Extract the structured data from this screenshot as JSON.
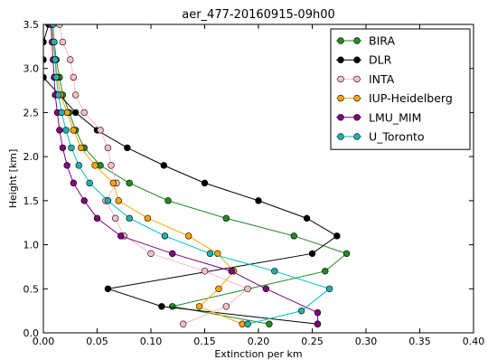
{
  "chart_data": {
    "type": "line",
    "title": "aer_477-20160915-09h00",
    "xlabel": "Extinction per km",
    "ylabel": "Height [km]",
    "xlim": [
      0.0,
      0.4
    ],
    "ylim": [
      0.0,
      3.5
    ],
    "xticks": [
      "0.00",
      "0.05",
      "0.10",
      "0.15",
      "0.20",
      "0.25",
      "0.30",
      "0.35",
      "0.40"
    ],
    "yticks": [
      "0.0",
      "0.5",
      "1.0",
      "1.5",
      "2.0",
      "2.5",
      "3.0",
      "3.5"
    ],
    "grid": false,
    "legend_position": "top-right",
    "series": [
      {
        "name": "BIRA",
        "color": "#228b22",
        "marker_fill": "#228b22",
        "points": [
          [
            0.21,
            0.1
          ],
          [
            0.12,
            0.3
          ],
          [
            0.262,
            0.7
          ],
          [
            0.282,
            0.9
          ],
          [
            0.233,
            1.1
          ],
          [
            0.17,
            1.3
          ],
          [
            0.116,
            1.5
          ],
          [
            0.08,
            1.7
          ],
          [
            0.053,
            1.9
          ],
          [
            0.038,
            2.1
          ],
          [
            0.03,
            2.3
          ],
          [
            0.024,
            2.5
          ],
          [
            0.018,
            2.7
          ],
          [
            0.015,
            2.9
          ],
          [
            0.012,
            3.1
          ],
          [
            0.01,
            3.3
          ],
          [
            0.008,
            3.5
          ]
        ]
      },
      {
        "name": "DLR",
        "color": "#000000",
        "marker_fill": "#000000",
        "points": [
          [
            0.255,
            0.1
          ],
          [
            0.11,
            0.3
          ],
          [
            0.06,
            0.5
          ],
          [
            0.25,
            0.9
          ],
          [
            0.273,
            1.1
          ],
          [
            0.245,
            1.3
          ],
          [
            0.2,
            1.5
          ],
          [
            0.15,
            1.7
          ],
          [
            0.112,
            1.9
          ],
          [
            0.078,
            2.1
          ],
          [
            0.05,
            2.3
          ],
          [
            0.03,
            2.5
          ],
          [
            0.015,
            2.7
          ],
          [
            0.0,
            2.9
          ],
          [
            0.0,
            3.1
          ],
          [
            0.0,
            3.3
          ],
          [
            0.005,
            3.5
          ]
        ]
      },
      {
        "name": "INTA",
        "color": "#ffb6c1",
        "marker_fill": "#ffc0cb",
        "points": [
          [
            0.13,
            0.1
          ],
          [
            0.17,
            0.3
          ],
          [
            0.19,
            0.5
          ],
          [
            0.15,
            0.7
          ],
          [
            0.1,
            0.9
          ],
          [
            0.075,
            1.1
          ],
          [
            0.067,
            1.3
          ],
          [
            0.058,
            1.5
          ],
          [
            0.068,
            1.7
          ],
          [
            0.063,
            1.9
          ],
          [
            0.06,
            2.1
          ],
          [
            0.053,
            2.3
          ],
          [
            0.038,
            2.5
          ],
          [
            0.03,
            2.7
          ],
          [
            0.028,
            2.9
          ],
          [
            0.025,
            3.1
          ],
          [
            0.018,
            3.3
          ],
          [
            0.015,
            3.5
          ]
        ]
      },
      {
        "name": "IUP-Heidelberg",
        "color": "#ffa500",
        "marker_fill": "#ffa500",
        "points": [
          [
            0.185,
            0.1
          ],
          [
            0.145,
            0.3
          ],
          [
            0.163,
            0.5
          ],
          [
            0.177,
            0.7
          ],
          [
            0.162,
            0.9
          ],
          [
            0.135,
            1.1
          ],
          [
            0.097,
            1.3
          ],
          [
            0.07,
            1.5
          ],
          [
            0.065,
            1.7
          ],
          [
            0.048,
            1.9
          ],
          [
            0.035,
            2.1
          ],
          [
            0.028,
            2.3
          ],
          [
            0.022,
            2.5
          ],
          [
            0.016,
            2.7
          ],
          [
            0.013,
            2.9
          ],
          [
            0.011,
            3.1
          ],
          [
            0.009,
            3.3
          ],
          [
            0.008,
            3.5
          ]
        ]
      },
      {
        "name": "LMU_MIM",
        "color": "#800080",
        "marker_fill": "#800080",
        "points": [
          [
            0.255,
            0.1
          ],
          [
            0.255,
            0.23
          ],
          [
            0.207,
            0.5
          ],
          [
            0.175,
            0.7
          ],
          [
            0.12,
            0.9
          ],
          [
            0.072,
            1.1
          ],
          [
            0.05,
            1.3
          ],
          [
            0.038,
            1.5
          ],
          [
            0.028,
            1.7
          ],
          [
            0.022,
            1.9
          ],
          [
            0.018,
            2.1
          ],
          [
            0.015,
            2.3
          ],
          [
            0.013,
            2.5
          ],
          [
            0.011,
            2.7
          ],
          [
            0.01,
            2.9
          ],
          [
            0.009,
            3.1
          ],
          [
            0.008,
            3.3
          ],
          [
            0.007,
            3.5
          ]
        ]
      },
      {
        "name": "U_Toronto",
        "color": "#00bfbf",
        "marker_fill": "#20b2aa",
        "points": [
          [
            0.19,
            0.1
          ],
          [
            0.24,
            0.25
          ],
          [
            0.266,
            0.5
          ],
          [
            0.215,
            0.7
          ],
          [
            0.155,
            0.9
          ],
          [
            0.113,
            1.1
          ],
          [
            0.08,
            1.3
          ],
          [
            0.06,
            1.5
          ],
          [
            0.043,
            1.7
          ],
          [
            0.033,
            1.9
          ],
          [
            0.026,
            2.1
          ],
          [
            0.021,
            2.3
          ],
          [
            0.017,
            2.5
          ],
          [
            0.014,
            2.7
          ],
          [
            0.012,
            2.9
          ],
          [
            0.011,
            3.1
          ],
          [
            0.01,
            3.3
          ],
          [
            0.009,
            3.5
          ]
        ]
      }
    ]
  }
}
